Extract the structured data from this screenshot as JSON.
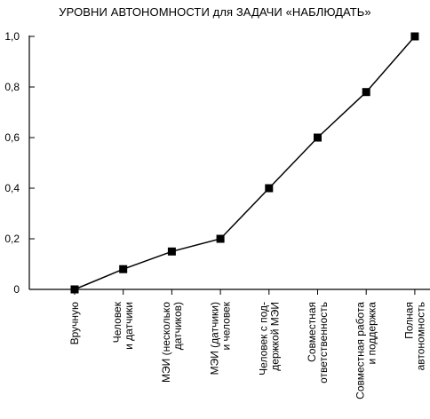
{
  "chart_data": {
    "type": "line",
    "title": "УРОВНИ АВТОНОМНОСТИ для ЗАДАЧИ «НАБЛЮДАТЬ»",
    "xlabel": "",
    "ylabel": "",
    "ylim": [
      0,
      1.0
    ],
    "y_ticks": [
      {
        "value": 0,
        "label": "0"
      },
      {
        "value": 0.2,
        "label": "0,2"
      },
      {
        "value": 0.4,
        "label": "0,4"
      },
      {
        "value": 0.6,
        "label": "0,6"
      },
      {
        "value": 0.8,
        "label": "0,8"
      },
      {
        "value": 1.0,
        "label": "1,0"
      }
    ],
    "categories": [
      [
        "Вручную"
      ],
      [
        "Человек",
        "и датчики"
      ],
      [
        "МЭИ (несколько",
        "датчиков)"
      ],
      [
        "МЭИ (датчики)",
        "и человек"
      ],
      [
        "Человек с под-",
        "держкой МЭИ"
      ],
      [
        "Совместная",
        "ответственность"
      ],
      [
        "Совместная работа",
        "и поддержка"
      ],
      [
        "Полная",
        "автономность"
      ]
    ],
    "values": [
      0,
      0.08,
      0.15,
      0.2,
      0.4,
      0.6,
      0.78,
      1.0
    ],
    "grid": false,
    "colors": {
      "line": "#000000",
      "marker": "#000000",
      "axis": "#000000"
    }
  }
}
